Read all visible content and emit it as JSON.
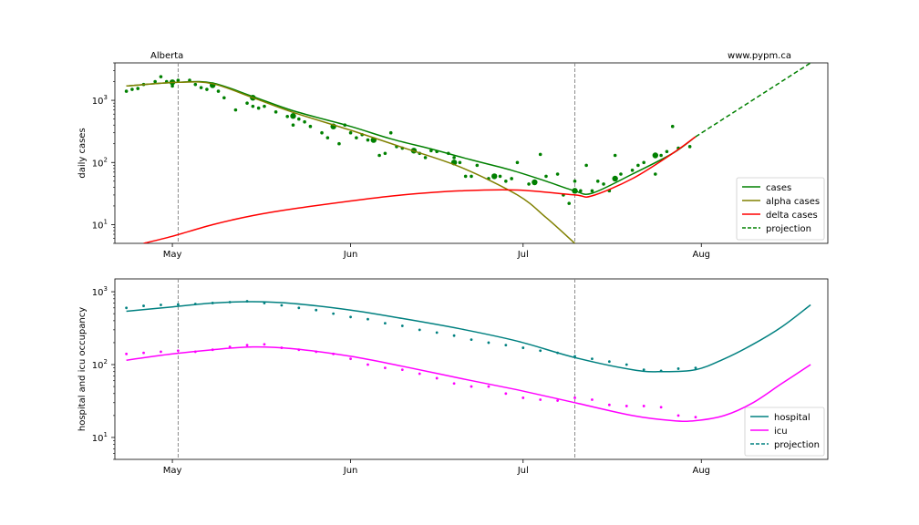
{
  "chart_data": [
    {
      "type": "line",
      "ylabel": "daily cases",
      "yscale": "log",
      "ylim": [
        5,
        4000
      ],
      "x_range_days": [
        "2021-04-21",
        "2021-08-23"
      ],
      "x_ticks": [
        {
          "date": "2021-05-01",
          "label": "May"
        },
        {
          "date": "2021-06-01",
          "label": "Jun"
        },
        {
          "date": "2021-07-01",
          "label": "Jul"
        },
        {
          "date": "2021-08-01",
          "label": "Aug"
        }
      ],
      "y_ticks": [
        {
          "value": 10,
          "label": "10^1"
        },
        {
          "value": 100,
          "label": "10^2"
        },
        {
          "value": 1000,
          "label": "10^3"
        }
      ],
      "corner_left": "Alberta",
      "corner_right": "www.pypm.ca",
      "vlines": [
        "2021-05-02",
        "2021-07-10"
      ],
      "legend_position": "lower right",
      "colors": {
        "cases": "#008000",
        "alpha": "#808000",
        "delta": "#ff0000",
        "projection": "#008000"
      },
      "series": [
        {
          "name": "cases",
          "color": "#008000",
          "x": [
            "2021-04-23",
            "2021-05-02",
            "2021-05-08",
            "2021-05-15",
            "2021-05-22",
            "2021-06-01",
            "2021-06-08",
            "2021-06-15",
            "2021-06-22",
            "2021-06-29",
            "2021-07-05",
            "2021-07-10",
            "2021-07-13",
            "2021-07-20",
            "2021-07-27",
            "2021-07-31"
          ],
          "y": [
            1700,
            1950,
            1900,
            1150,
            680,
            380,
            240,
            165,
            110,
            75,
            50,
            35,
            32,
            65,
            140,
            260
          ]
        },
        {
          "name": "alpha cases",
          "color": "#808000",
          "x": [
            "2021-04-23",
            "2021-05-02",
            "2021-05-08",
            "2021-05-15",
            "2021-05-22",
            "2021-06-01",
            "2021-06-10",
            "2021-06-20",
            "2021-06-30",
            "2021-07-05",
            "2021-07-10"
          ],
          "y": [
            1700,
            1950,
            1850,
            1100,
            640,
            330,
            175,
            85,
            30,
            13,
            5
          ]
        },
        {
          "name": "delta cases",
          "color": "#ff0000",
          "x": [
            "2021-04-26",
            "2021-05-01",
            "2021-05-08",
            "2021-05-15",
            "2021-05-22",
            "2021-06-01",
            "2021-06-10",
            "2021-06-20",
            "2021-06-30",
            "2021-07-10",
            "2021-07-13",
            "2021-07-20",
            "2021-07-27",
            "2021-07-31"
          ],
          "y": [
            5,
            6.5,
            10,
            14,
            18,
            24,
            30,
            35,
            36,
            30,
            29,
            55,
            140,
            260
          ]
        },
        {
          "name": "projection",
          "color": "#008000",
          "dashed": true,
          "x": [
            "2021-07-31",
            "2021-08-20"
          ],
          "y": [
            260,
            4000
          ]
        }
      ],
      "observed": {
        "x": [
          "2021-04-23",
          "2021-04-24",
          "2021-04-25",
          "2021-04-26",
          "2021-04-28",
          "2021-04-29",
          "2021-04-30",
          "2021-05-01",
          "2021-05-02",
          "2021-05-04",
          "2021-05-05",
          "2021-05-06",
          "2021-05-07",
          "2021-05-09",
          "2021-05-10",
          "2021-05-12",
          "2021-05-14",
          "2021-05-15",
          "2021-05-16",
          "2021-05-17",
          "2021-05-19",
          "2021-05-21",
          "2021-05-22",
          "2021-05-23",
          "2021-05-24",
          "2021-05-25",
          "2021-05-27",
          "2021-05-28",
          "2021-05-30",
          "2021-05-31",
          "2021-06-01",
          "2021-06-02",
          "2021-06-03",
          "2021-06-04",
          "2021-06-06",
          "2021-06-07",
          "2021-06-08",
          "2021-06-09",
          "2021-06-10",
          "2021-06-12",
          "2021-06-13",
          "2021-06-14",
          "2021-06-15",
          "2021-06-16",
          "2021-06-18",
          "2021-06-19",
          "2021-06-20",
          "2021-06-21",
          "2021-06-22",
          "2021-06-23",
          "2021-06-25",
          "2021-06-27",
          "2021-06-28",
          "2021-06-29",
          "2021-06-30",
          "2021-07-02",
          "2021-07-04",
          "2021-07-05",
          "2021-07-07",
          "2021-07-08",
          "2021-07-09",
          "2021-07-10",
          "2021-07-11",
          "2021-07-12",
          "2021-07-13",
          "2021-07-14",
          "2021-07-15",
          "2021-07-16",
          "2021-07-17",
          "2021-07-18",
          "2021-07-20",
          "2021-07-21",
          "2021-07-22",
          "2021-07-24",
          "2021-07-25",
          "2021-07-26",
          "2021-07-27",
          "2021-07-28",
          "2021-07-30"
        ],
        "y": [
          1400,
          1500,
          1550,
          1800,
          2000,
          2400,
          2000,
          1700,
          2100,
          2100,
          1800,
          1600,
          1500,
          1400,
          1100,
          700,
          900,
          800,
          750,
          800,
          650,
          550,
          400,
          500,
          450,
          380,
          300,
          250,
          200,
          400,
          300,
          250,
          280,
          230,
          130,
          140,
          300,
          180,
          170,
          160,
          140,
          120,
          155,
          150,
          140,
          120,
          100,
          60,
          60,
          90,
          55,
          60,
          50,
          55,
          100,
          45,
          135,
          60,
          65,
          30,
          22,
          50,
          35,
          90,
          35,
          50,
          45,
          35,
          130,
          65,
          75,
          90,
          100,
          65,
          130,
          150,
          380,
          170,
          180
        ]
      },
      "observed_weekly": {
        "x": [
          "2021-05-01",
          "2021-05-08",
          "2021-05-15",
          "2021-05-22",
          "2021-05-29",
          "2021-06-05",
          "2021-06-12",
          "2021-06-19",
          "2021-06-26",
          "2021-07-03",
          "2021-07-10",
          "2021-07-17",
          "2021-07-24"
        ],
        "y": [
          1950,
          1750,
          1100,
          560,
          380,
          230,
          155,
          100,
          60,
          48,
          35,
          55,
          130
        ]
      }
    },
    {
      "type": "line",
      "ylabel": "hospital and icu occupancy",
      "yscale": "log",
      "ylim": [
        5,
        1500
      ],
      "x_range_days": [
        "2021-04-21",
        "2021-08-23"
      ],
      "x_ticks": [
        {
          "date": "2021-05-01",
          "label": "May"
        },
        {
          "date": "2021-06-01",
          "label": "Jun"
        },
        {
          "date": "2021-07-01",
          "label": "Jul"
        },
        {
          "date": "2021-08-01",
          "label": "Aug"
        }
      ],
      "y_ticks": [
        {
          "value": 10,
          "label": "10^1"
        },
        {
          "value": 100,
          "label": "10^2"
        },
        {
          "value": 1000,
          "label": "10^3"
        }
      ],
      "vlines": [
        "2021-05-02",
        "2021-07-10"
      ],
      "legend_position": "lower right",
      "colors": {
        "hospital": "#008080",
        "icu": "#ff00ff",
        "projection": "#008080"
      },
      "series": [
        {
          "name": "hospital",
          "color": "#008080",
          "x": [
            "2021-04-23",
            "2021-05-01",
            "2021-05-08",
            "2021-05-15",
            "2021-05-22",
            "2021-06-01",
            "2021-06-10",
            "2021-06-20",
            "2021-06-30",
            "2021-07-10",
            "2021-07-20",
            "2021-07-25",
            "2021-07-31",
            "2021-08-05",
            "2021-08-10",
            "2021-08-15",
            "2021-08-20"
          ],
          "y": [
            540,
            620,
            700,
            730,
            690,
            560,
            430,
            310,
            210,
            125,
            85,
            80,
            85,
            120,
            190,
            330,
            660
          ]
        },
        {
          "name": "icu",
          "color": "#ff00ff",
          "x": [
            "2021-04-23",
            "2021-05-01",
            "2021-05-08",
            "2021-05-15",
            "2021-05-22",
            "2021-06-01",
            "2021-06-10",
            "2021-06-20",
            "2021-06-30",
            "2021-07-10",
            "2021-07-20",
            "2021-07-27",
            "2021-07-31",
            "2021-08-05",
            "2021-08-10",
            "2021-08-15",
            "2021-08-20"
          ],
          "y": [
            115,
            140,
            160,
            175,
            165,
            130,
            95,
            65,
            45,
            30,
            20,
            17,
            17,
            20,
            30,
            55,
            100
          ]
        },
        {
          "name": "projection",
          "color": "#008080",
          "dashed": true,
          "x": [],
          "y": []
        }
      ],
      "observed_hospital": {
        "x": [
          "2021-04-23",
          "2021-04-26",
          "2021-04-29",
          "2021-05-02",
          "2021-05-05",
          "2021-05-08",
          "2021-05-11",
          "2021-05-14",
          "2021-05-17",
          "2021-05-20",
          "2021-05-23",
          "2021-05-26",
          "2021-05-29",
          "2021-06-01",
          "2021-06-04",
          "2021-06-07",
          "2021-06-10",
          "2021-06-13",
          "2021-06-16",
          "2021-06-19",
          "2021-06-22",
          "2021-06-25",
          "2021-06-28",
          "2021-07-01",
          "2021-07-04",
          "2021-07-07",
          "2021-07-10",
          "2021-07-13",
          "2021-07-16",
          "2021-07-19",
          "2021-07-22",
          "2021-07-25",
          "2021-07-28",
          "2021-07-31"
        ],
        "y": [
          600,
          640,
          660,
          670,
          680,
          700,
          720,
          740,
          700,
          650,
          600,
          560,
          500,
          450,
          420,
          370,
          340,
          300,
          275,
          250,
          220,
          200,
          185,
          170,
          155,
          145,
          130,
          120,
          110,
          100,
          85,
          82,
          88,
          90
        ]
      },
      "observed_icu": {
        "x": [
          "2021-04-23",
          "2021-04-26",
          "2021-04-29",
          "2021-05-02",
          "2021-05-05",
          "2021-05-08",
          "2021-05-11",
          "2021-05-14",
          "2021-05-17",
          "2021-05-20",
          "2021-05-23",
          "2021-05-26",
          "2021-05-29",
          "2021-06-01",
          "2021-06-04",
          "2021-06-07",
          "2021-06-10",
          "2021-06-13",
          "2021-06-16",
          "2021-06-19",
          "2021-06-22",
          "2021-06-25",
          "2021-06-28",
          "2021-07-01",
          "2021-07-04",
          "2021-07-07",
          "2021-07-10",
          "2021-07-13",
          "2021-07-16",
          "2021-07-19",
          "2021-07-22",
          "2021-07-25",
          "2021-07-28",
          "2021-07-31"
        ],
        "y": [
          140,
          145,
          150,
          155,
          150,
          160,
          175,
          185,
          190,
          170,
          160,
          150,
          140,
          120,
          100,
          90,
          85,
          75,
          65,
          55,
          50,
          50,
          40,
          35,
          33,
          32,
          35,
          33,
          28,
          27,
          27,
          26,
          20,
          19
        ]
      }
    }
  ]
}
